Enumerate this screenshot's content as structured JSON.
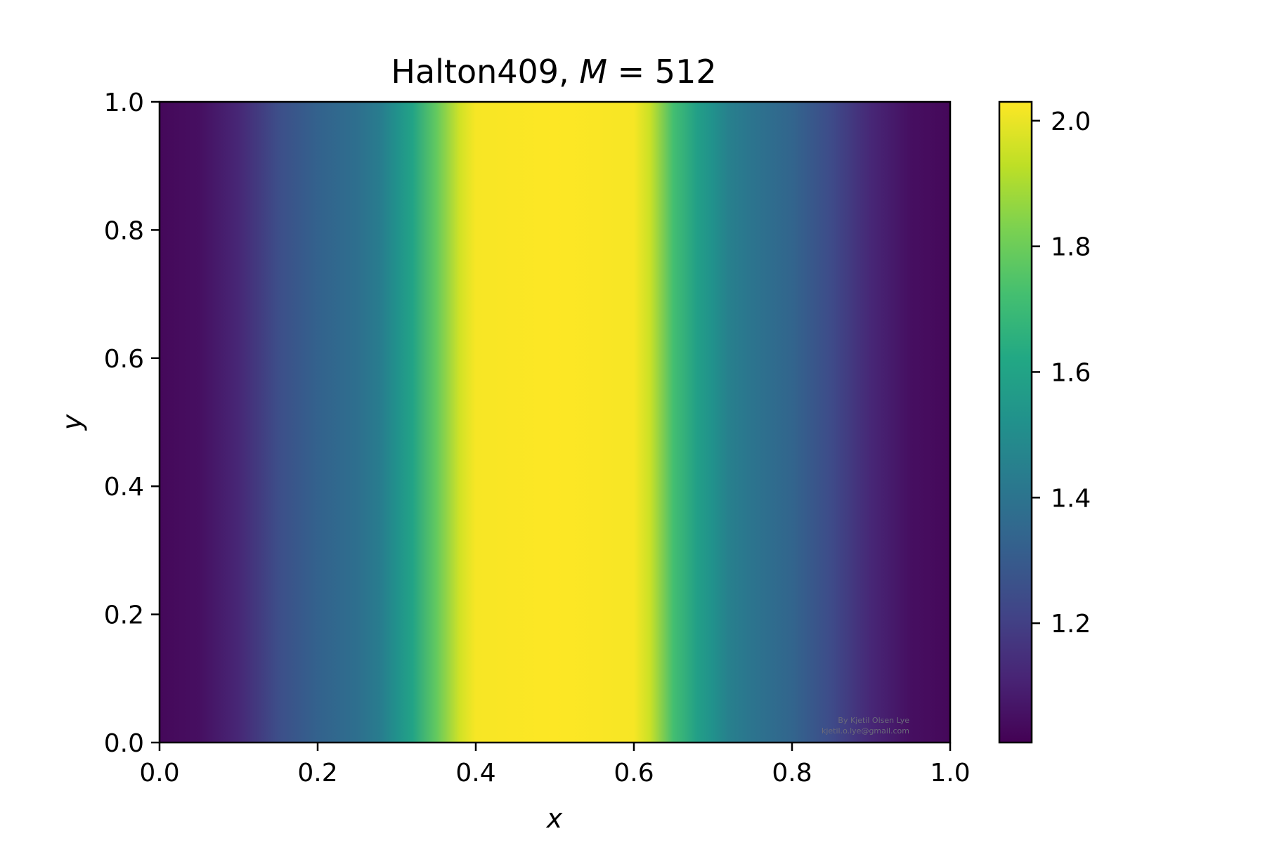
{
  "chart_data": {
    "type": "heatmap",
    "title": {
      "prefix": "Halton409, ",
      "var": "M",
      "suffix": " = 512"
    },
    "xlabel": "x",
    "ylabel": "y",
    "xlim": [
      0.0,
      1.0
    ],
    "ylim": [
      0.0,
      1.0
    ],
    "xticks": [
      "0.0",
      "0.2",
      "0.4",
      "0.6",
      "0.8",
      "1.0"
    ],
    "yticks": [
      "0.0",
      "0.2",
      "0.4",
      "0.6",
      "0.8",
      "1.0"
    ],
    "colormap": "viridis",
    "color_range": [
      1.01,
      2.03
    ],
    "colorbar_ticks": [
      "1.2",
      "1.4",
      "1.6",
      "1.8",
      "2.0"
    ],
    "colorbar_tick_values": [
      1.2,
      1.4,
      1.6,
      1.8,
      2.0
    ],
    "grid": false,
    "value_profile_along_x": {
      "x": [
        0.0,
        0.05,
        0.1,
        0.15,
        0.2,
        0.25,
        0.28,
        0.3,
        0.32,
        0.35,
        0.38,
        0.4,
        0.5,
        0.6,
        0.62,
        0.65,
        0.68,
        0.7,
        0.72,
        0.75,
        0.8,
        0.85,
        0.9,
        0.95,
        1.0
      ],
      "values": [
        1.03,
        1.05,
        1.12,
        1.25,
        1.33,
        1.38,
        1.44,
        1.52,
        1.6,
        1.78,
        1.96,
        2.02,
        2.03,
        2.02,
        1.95,
        1.72,
        1.58,
        1.52,
        1.45,
        1.4,
        1.34,
        1.24,
        1.12,
        1.05,
        1.03
      ]
    },
    "watermark": [
      "By Kjetil Olsen Lye",
      "kjetil.o.lye@gmail.com"
    ]
  }
}
